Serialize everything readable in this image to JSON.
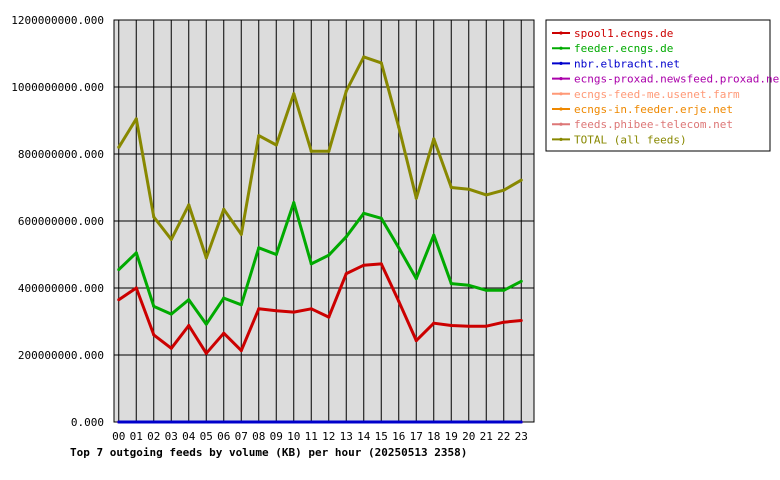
{
  "chart_data": {
    "type": "line",
    "title": "Top 7 outgoing feeds by volume (KB) per hour (20250513 2358)",
    "x": [
      "00",
      "01",
      "02",
      "03",
      "04",
      "05",
      "06",
      "07",
      "08",
      "09",
      "10",
      "11",
      "12",
      "13",
      "14",
      "15",
      "16",
      "17",
      "18",
      "19",
      "20",
      "21",
      "22",
      "23"
    ],
    "yticks": [
      "0.000",
      "200000000.000",
      "400000000.000",
      "600000000.000",
      "800000000.000",
      "1000000000.000",
      "1200000000.000"
    ],
    "ylim": [
      0,
      1200000000
    ],
    "grid": true,
    "legend_position": "top-right",
    "series": [
      {
        "name": "spool1.ecngs.de",
        "color": "#cc0000",
        "values": [
          365000000,
          400000000,
          260000000,
          220000000,
          288000000,
          205000000,
          265000000,
          213000000,
          338000000,
          332000000,
          328000000,
          338000000,
          313000000,
          443000000,
          468000000,
          472000000,
          360000000,
          243000000,
          295000000,
          288000000,
          286000000,
          286000000,
          298000000,
          303000000
        ]
      },
      {
        "name": "feeder.ecngs.de",
        "color": "#00aa00",
        "values": [
          455000000,
          505000000,
          345000000,
          322000000,
          365000000,
          292000000,
          370000000,
          350000000,
          520000000,
          500000000,
          655000000,
          472000000,
          498000000,
          553000000,
          623000000,
          608000000,
          520000000,
          428000000,
          558000000,
          413000000,
          408000000,
          393000000,
          393000000,
          420000000
        ]
      },
      {
        "name": "nbr.elbracht.net",
        "color": "#0000cc",
        "values": [
          0,
          0,
          0,
          0,
          0,
          0,
          0,
          0,
          0,
          0,
          0,
          0,
          0,
          0,
          0,
          0,
          0,
          0,
          0,
          0,
          0,
          0,
          0,
          0
        ]
      },
      {
        "name": "ecngs-proxad.newsfeed.proxad.net",
        "color": "#aa00aa",
        "values": [
          0,
          0,
          0,
          0,
          0,
          0,
          0,
          0,
          0,
          0,
          0,
          0,
          0,
          0,
          0,
          0,
          0,
          0,
          0,
          0,
          0,
          0,
          0,
          0
        ]
      },
      {
        "name": "ecngs-feed-me.usenet.farm",
        "color": "#ff9977",
        "values": [
          0,
          0,
          0,
          0,
          0,
          0,
          0,
          0,
          0,
          0,
          0,
          0,
          0,
          0,
          0,
          0,
          0,
          0,
          0,
          0,
          0,
          0,
          0,
          0
        ]
      },
      {
        "name": "ecngs-in.feeder.erje.net",
        "color": "#ee8800",
        "values": [
          0,
          0,
          0,
          0,
          0,
          0,
          0,
          0,
          0,
          0,
          0,
          0,
          0,
          0,
          0,
          0,
          0,
          0,
          0,
          0,
          0,
          0,
          0,
          0
        ]
      },
      {
        "name": "feeds.phibee-telecom.net",
        "color": "#dd7777",
        "values": [
          0,
          0,
          0,
          0,
          0,
          0,
          0,
          0,
          0,
          0,
          0,
          0,
          0,
          0,
          0,
          0,
          0,
          0,
          0,
          0,
          0,
          0,
          0,
          0
        ]
      },
      {
        "name": "TOTAL (all feeds)",
        "color": "#888800",
        "values": [
          820000000,
          905000000,
          612000000,
          545000000,
          648000000,
          490000000,
          635000000,
          560000000,
          855000000,
          827000000,
          980000000,
          808000000,
          808000000,
          988000000,
          1090000000,
          1072000000,
          880000000,
          668000000,
          845000000,
          700000000,
          695000000,
          678000000,
          692000000,
          722000000
        ]
      }
    ]
  }
}
